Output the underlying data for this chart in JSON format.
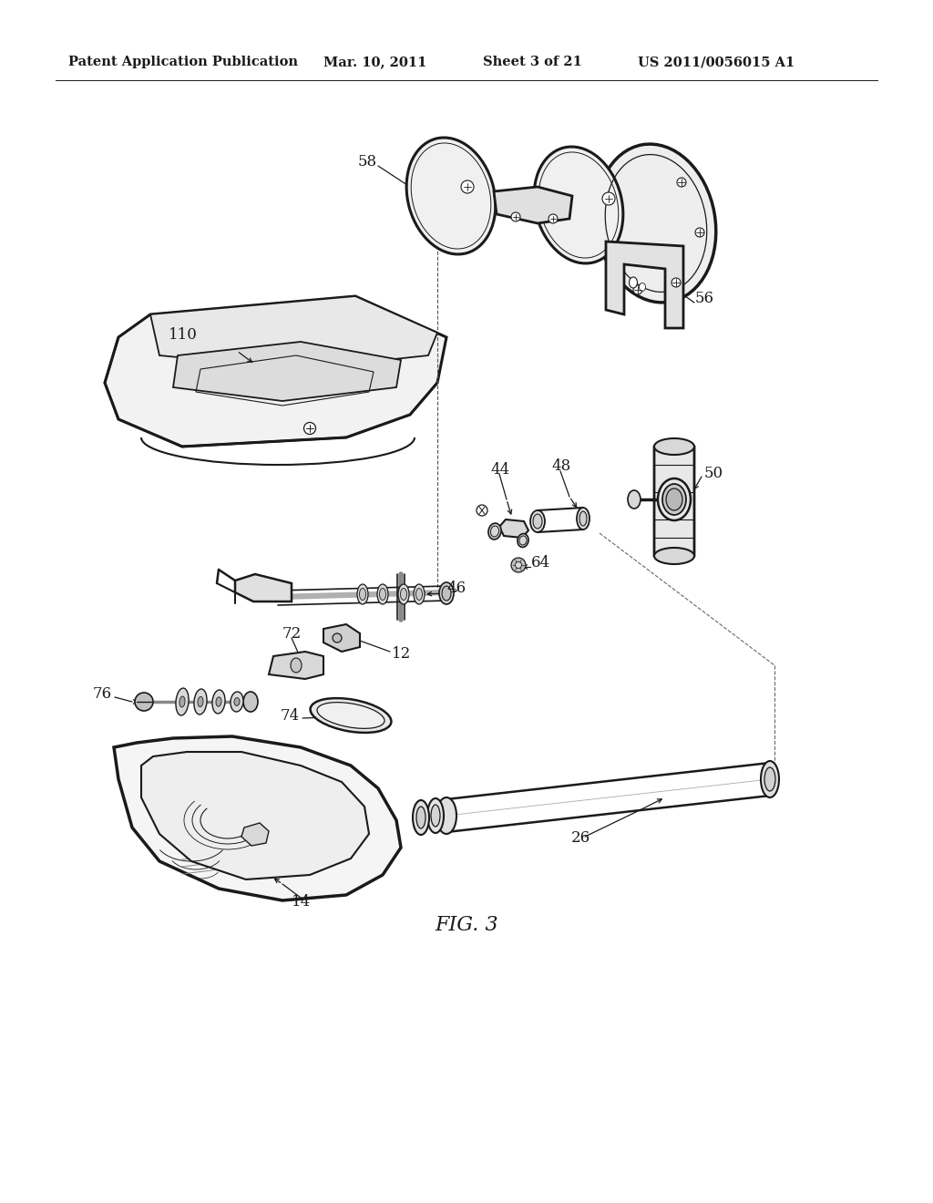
{
  "title": "Patent Application Publication",
  "date": "Mar. 10, 2011",
  "sheet": "Sheet 3 of 21",
  "patent_num": "US 2011/0056015 A1",
  "fig_label": "FIG. 3",
  "background_color": "#ffffff",
  "line_color": "#1a1a1a",
  "header_fontsize": 10.5,
  "label_fontsize": 12,
  "fig_label_fontsize": 16
}
